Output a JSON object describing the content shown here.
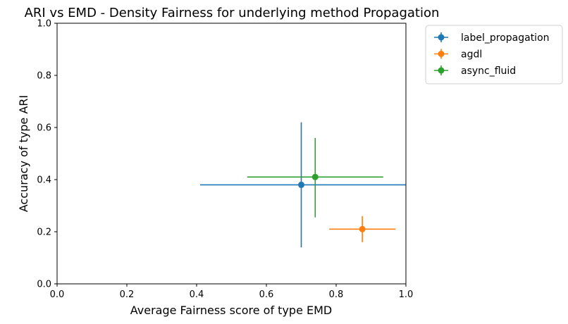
{
  "chart_data": {
    "type": "scatter",
    "title": "ARI vs EMD - Density Fairness for underlying method Propagation",
    "xlabel": "Average Fairness score of type EMD",
    "ylabel": "Accuracy of type ARI",
    "xlim": [
      0.0,
      1.0
    ],
    "ylim": [
      0.0,
      1.0
    ],
    "xticks": [
      "0.0",
      "0.2",
      "0.4",
      "0.6",
      "0.8",
      "1.0"
    ],
    "yticks": [
      "0.0",
      "0.2",
      "0.4",
      "0.6",
      "0.8",
      "1.0"
    ],
    "grid": false,
    "legend_position": "outside upper right",
    "series": [
      {
        "name": "label_propagation",
        "color": "#1f77b4",
        "x": 0.7,
        "y": 0.38,
        "xerr": [
          0.41,
          1.0
        ],
        "yerr": [
          0.14,
          0.62
        ]
      },
      {
        "name": "agdl",
        "color": "#ff7f0e",
        "x": 0.875,
        "y": 0.21,
        "xerr": [
          0.78,
          0.97
        ],
        "yerr": [
          0.16,
          0.26
        ]
      },
      {
        "name": "async_fluid",
        "color": "#2ca02c",
        "x": 0.74,
        "y": 0.41,
        "xerr": [
          0.545,
          0.935
        ],
        "yerr": [
          0.255,
          0.56
        ]
      }
    ]
  }
}
